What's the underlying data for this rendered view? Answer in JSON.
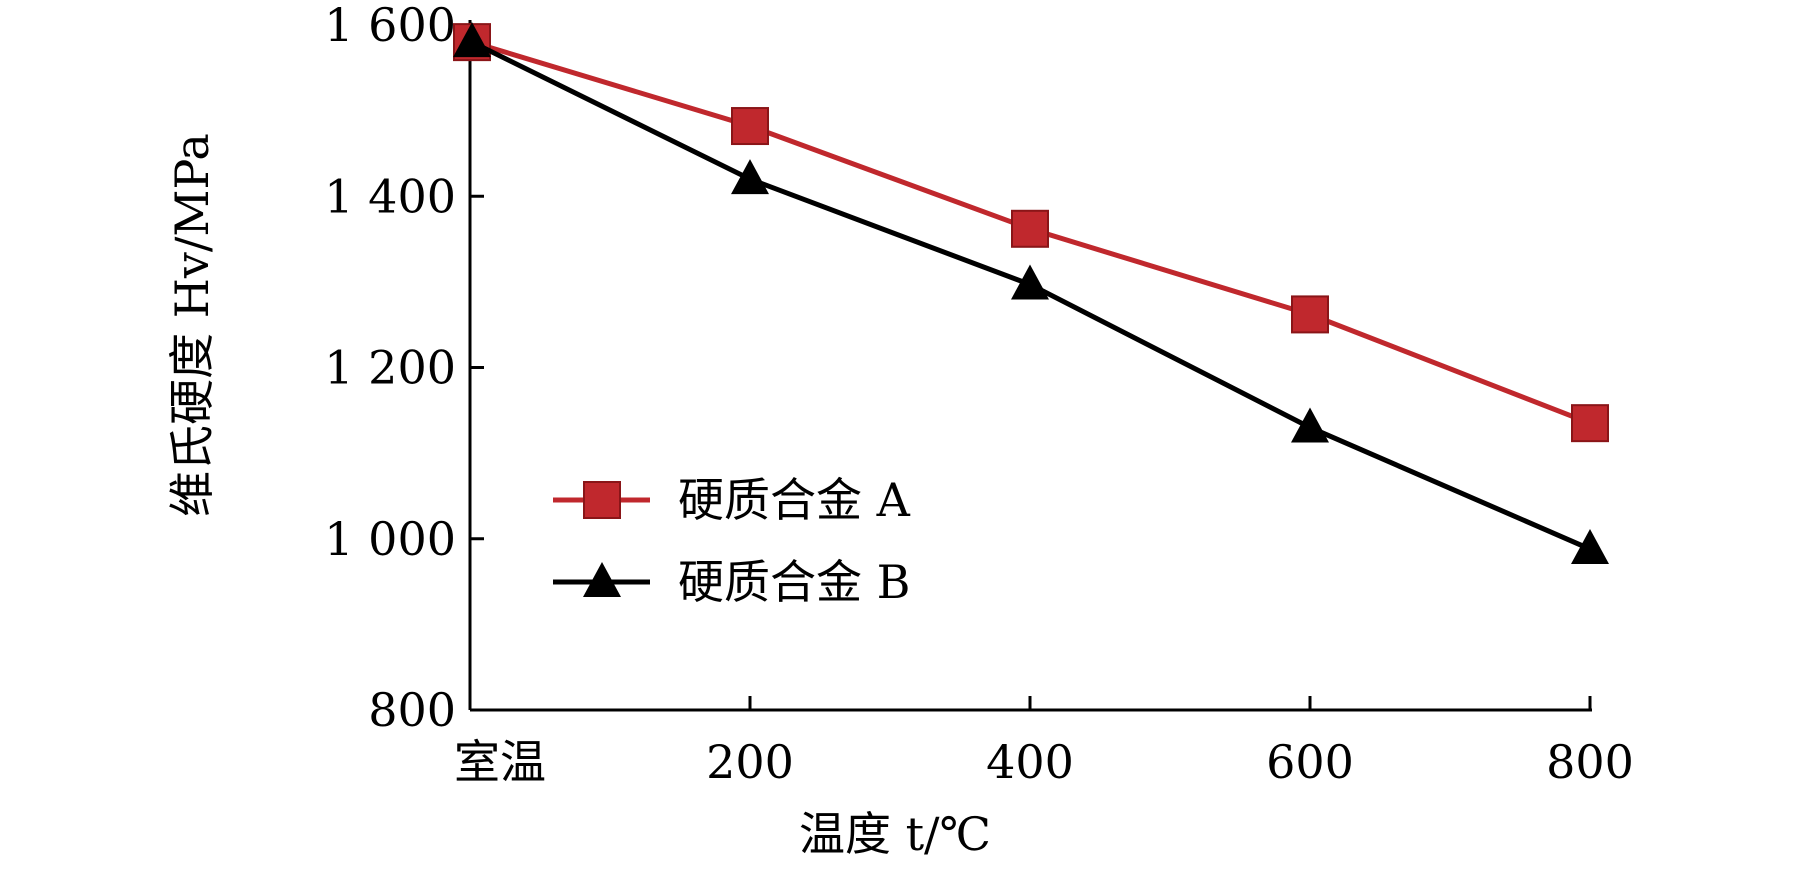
{
  "chart_data": {
    "type": "line",
    "title": "",
    "xlabel": "温度 t/℃",
    "ylabel": "维氏硬度 Hv/MPa",
    "categories": [
      "室温",
      "200",
      "400",
      "600",
      "800"
    ],
    "yticks": [
      "800",
      "1 000",
      "1 200",
      "1 400",
      "1 600"
    ],
    "ylim": [
      800,
      1600
    ],
    "grid": false,
    "legend_position": "center-left",
    "series": [
      {
        "name": "硬质合金 A",
        "values": [
          1580,
          1482,
          1362,
          1262,
          1135
        ],
        "color": "#c0282d",
        "marker": "square"
      },
      {
        "name": "硬质合金 B",
        "values": [
          1580,
          1420,
          1297,
          1130,
          988
        ],
        "color": "#000000",
        "marker": "triangle"
      }
    ]
  }
}
